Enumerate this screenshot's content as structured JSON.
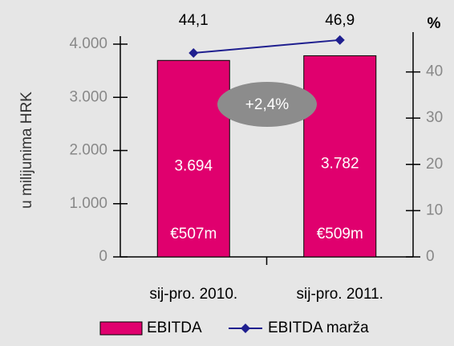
{
  "chart_data": {
    "type": "bar_line",
    "y_axis_label": "u milijunima HRK",
    "y2_axis_label": "%",
    "categories": [
      "sij-pro. 2010.",
      "sij-pro. 2011."
    ],
    "series": [
      {
        "name": "EBITDA",
        "type": "bar",
        "color": "#e0006e",
        "values": [
          3694,
          3782
        ],
        "value_labels": [
          "3.694",
          "3.782"
        ],
        "inner_labels": [
          "€507m",
          "€509m"
        ]
      },
      {
        "name": "EBITDA marža",
        "type": "line",
        "axis": "y2",
        "color": "#1f1f8f",
        "values": [
          44.1,
          46.9
        ],
        "value_labels": [
          "44,1",
          "46,9"
        ]
      }
    ],
    "annotation": "+2,4%",
    "ylim": [
      0,
      4000
    ],
    "yticks": [
      0,
      {
        "value": 1000,
        "label": "1.000"
      },
      {
        "value": 2000,
        "label": "2.000"
      },
      {
        "value": 3000,
        "label": "3.000"
      },
      {
        "value": 4000,
        "label": "4.000"
      }
    ],
    "y2lim": [
      0,
      46
    ],
    "y2ticks": [
      0,
      10,
      20,
      30,
      40
    ],
    "legend": "bottom"
  }
}
